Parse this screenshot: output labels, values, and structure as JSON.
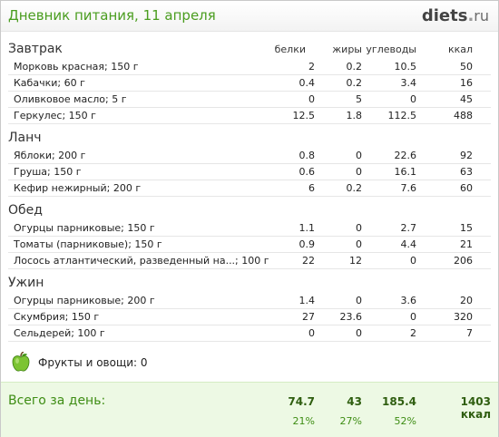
{
  "header": {
    "title": "Дневник питания, 11 апреля",
    "logo_main": "diets",
    "logo_dot": ".",
    "logo_tld": "ru"
  },
  "columns": [
    "белки",
    "жиры",
    "углеводы",
    "ккал"
  ],
  "meals": [
    {
      "name": "Завтрак",
      "items": [
        {
          "name": "Морковь красная; 150 г",
          "values": [
            "2",
            "0.2",
            "10.5",
            "50"
          ]
        },
        {
          "name": "Кабачки; 60 г",
          "values": [
            "0.4",
            "0.2",
            "3.4",
            "16"
          ]
        },
        {
          "name": "Оливковое масло; 5 г",
          "values": [
            "0",
            "5",
            "0",
            "45"
          ]
        },
        {
          "name": "Геркулес; 150 г",
          "values": [
            "12.5",
            "1.8",
            "112.5",
            "488"
          ]
        }
      ]
    },
    {
      "name": "Ланч",
      "items": [
        {
          "name": "Яблоки; 200 г",
          "values": [
            "0.8",
            "0",
            "22.6",
            "92"
          ]
        },
        {
          "name": "Груша; 150 г",
          "values": [
            "0.6",
            "0",
            "16.1",
            "63"
          ]
        },
        {
          "name": "Кефир нежирный; 200 г",
          "values": [
            "6",
            "0.2",
            "7.6",
            "60"
          ]
        }
      ]
    },
    {
      "name": "Обед",
      "items": [
        {
          "name": "Огурцы парниковые; 150 г",
          "values": [
            "1.1",
            "0",
            "2.7",
            "15"
          ]
        },
        {
          "name": "Томаты (парниковые); 150 г",
          "values": [
            "0.9",
            "0",
            "4.4",
            "21"
          ]
        },
        {
          "name": "Лосось атлантический, разведенный на...; 100 г",
          "values": [
            "22",
            "12",
            "0",
            "206"
          ]
        }
      ]
    },
    {
      "name": "Ужин",
      "items": [
        {
          "name": "Огурцы парниковые; 200 г",
          "values": [
            "1.4",
            "0",
            "3.6",
            "20"
          ]
        },
        {
          "name": "Скумбрия; 150 г",
          "values": [
            "27",
            "23.6",
            "0",
            "320"
          ]
        },
        {
          "name": "Сельдерей; 100 г",
          "values": [
            "0",
            "0",
            "2",
            "7"
          ]
        }
      ]
    }
  ],
  "fruit": {
    "label": "Фрукты и овощи: 0",
    "icon": "apple-icon"
  },
  "totals": {
    "label": "Всего за день:",
    "values": [
      "74.7",
      "43",
      "185.4",
      "1403 ккал"
    ],
    "percents": [
      "21%",
      "27%",
      "52%"
    ]
  },
  "colors": {
    "accent": "#4a9d1f",
    "totals_bg": "#edf9e4"
  }
}
